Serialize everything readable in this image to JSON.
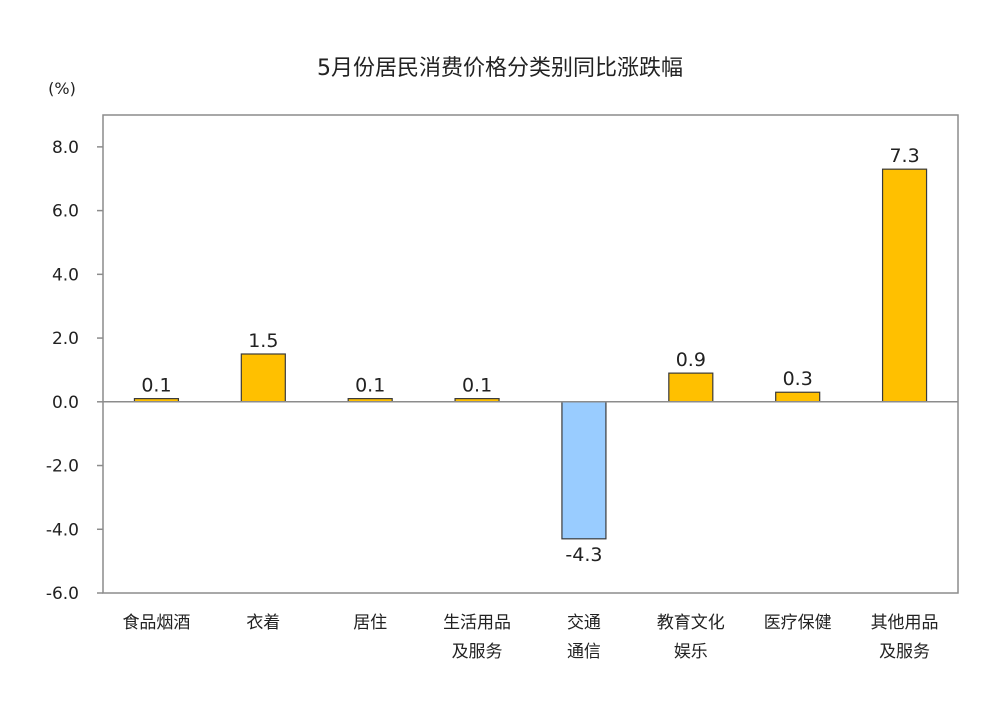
{
  "chart_data": {
    "type": "bar",
    "title": "5月份居民消费价格分类别同比涨跌幅",
    "ylabel": "(%)",
    "xlabel": "",
    "ylim": [
      -6,
      9
    ],
    "yticks": [
      "-6.0",
      "-4.0",
      "-2.0",
      "0.0",
      "2.0",
      "4.0",
      "6.0",
      "8.0"
    ],
    "categories": [
      [
        "食品烟酒"
      ],
      [
        "衣着"
      ],
      [
        "居住"
      ],
      [
        "生活用品",
        "及服务"
      ],
      [
        "交通",
        "通信"
      ],
      [
        "教育文化",
        "娱乐"
      ],
      [
        "医疗保健"
      ],
      [
        "其他用品",
        "及服务"
      ]
    ],
    "values": [
      0.1,
      1.5,
      0.1,
      0.1,
      -4.3,
      0.9,
      0.3,
      7.3
    ],
    "labels": [
      "0.1",
      "1.5",
      "0.1",
      "0.1",
      "-4.3",
      "0.9",
      "0.3",
      "7.3"
    ],
    "grid": false,
    "colors": {
      "positive": "#FFC000",
      "negative": "#99CCFF",
      "border": "#3a3a3a",
      "frame": "#8c8c8c"
    }
  }
}
